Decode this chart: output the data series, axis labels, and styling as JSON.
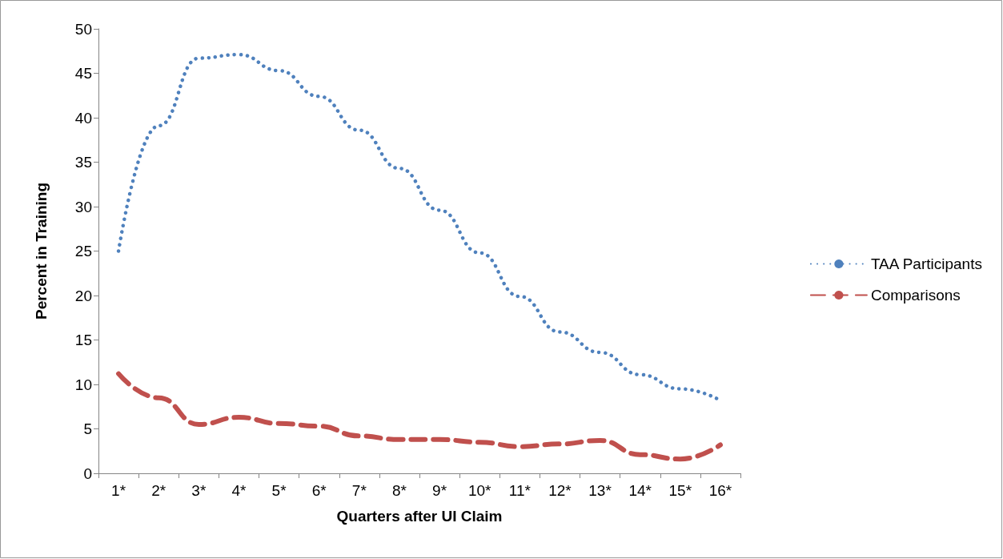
{
  "chart_data": {
    "type": "line",
    "xlabel": "Quarters after UI Claim",
    "ylabel": "Percent in Training",
    "categories": [
      "1*",
      "2*",
      "3*",
      "4*",
      "5*",
      "6*",
      "7*",
      "8*",
      "9*",
      "10*",
      "11*",
      "12*",
      "13*",
      "14*",
      "15*",
      "16*"
    ],
    "series": [
      {
        "name": "TAA Participants",
        "color": "#4f81bd",
        "line_style": "dotted",
        "values": [
          25,
          39.1,
          46.7,
          47.1,
          45.3,
          42.4,
          38.6,
          34.3,
          29.6,
          24.8,
          19.9,
          15.9,
          13.6,
          11.1,
          9.5,
          8.2
        ]
      },
      {
        "name": "Comparisons",
        "color": "#c0504d",
        "line_style": "dashed",
        "values": [
          11.2,
          8.5,
          5.5,
          6.3,
          5.6,
          5.3,
          4.2,
          3.8,
          3.8,
          3.5,
          3.0,
          3.3,
          3.7,
          2.1,
          1.6,
          3.2
        ]
      }
    ],
    "ylim": [
      0,
      50
    ],
    "yticks": [
      0,
      5,
      10,
      15,
      20,
      25,
      30,
      35,
      40,
      45,
      50
    ],
    "grid": false,
    "legend": "right",
    "marker": "none"
  }
}
